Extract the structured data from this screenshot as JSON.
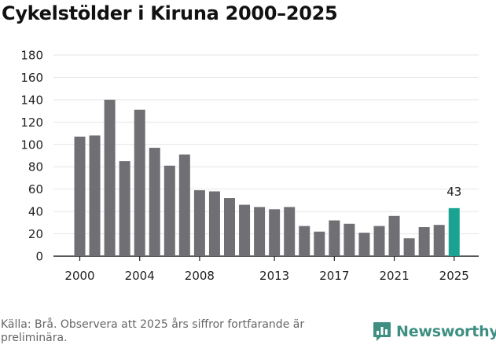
{
  "chart_data": {
    "type": "bar",
    "title": "Cykelstölder i Kiruna 2000–2025",
    "x": [
      2000,
      2001,
      2002,
      2003,
      2004,
      2005,
      2006,
      2007,
      2008,
      2009,
      2010,
      2011,
      2012,
      2013,
      2014,
      2015,
      2016,
      2017,
      2018,
      2019,
      2020,
      2021,
      2022,
      2023,
      2024,
      2025
    ],
    "values": [
      107,
      108,
      140,
      85,
      131,
      97,
      81,
      91,
      59,
      58,
      52,
      46,
      44,
      42,
      44,
      27,
      22,
      32,
      29,
      21,
      27,
      36,
      16,
      26,
      28,
      43
    ],
    "highlight_x": 2025,
    "highlight_label": "43",
    "x_tick_labels": [
      "2000",
      "2004",
      "2008",
      "2013",
      "2017",
      "2021",
      "2025"
    ],
    "x_tick_values": [
      2000,
      2004,
      2008,
      2013,
      2017,
      2021,
      2025
    ],
    "y_tick_labels": [
      "0",
      "20",
      "40",
      "60",
      "80",
      "100",
      "120",
      "140",
      "160",
      "180"
    ],
    "y_tick_values": [
      0,
      20,
      40,
      60,
      80,
      100,
      120,
      140,
      160,
      180
    ],
    "ylim": [
      0,
      180
    ],
    "xlabel": "",
    "ylabel": "",
    "grid": "horizontal",
    "colors": {
      "bar": "#706f74",
      "highlight": "#1aa393",
      "grid": "#e6e6e6",
      "axis": "#222222"
    }
  },
  "footer": {
    "source": "Källa: Brå. Observera att 2025 års siffror fortfarande är preliminära.",
    "brand": "Newsworthy",
    "brand_icon": "newsworthy-logo-icon"
  }
}
